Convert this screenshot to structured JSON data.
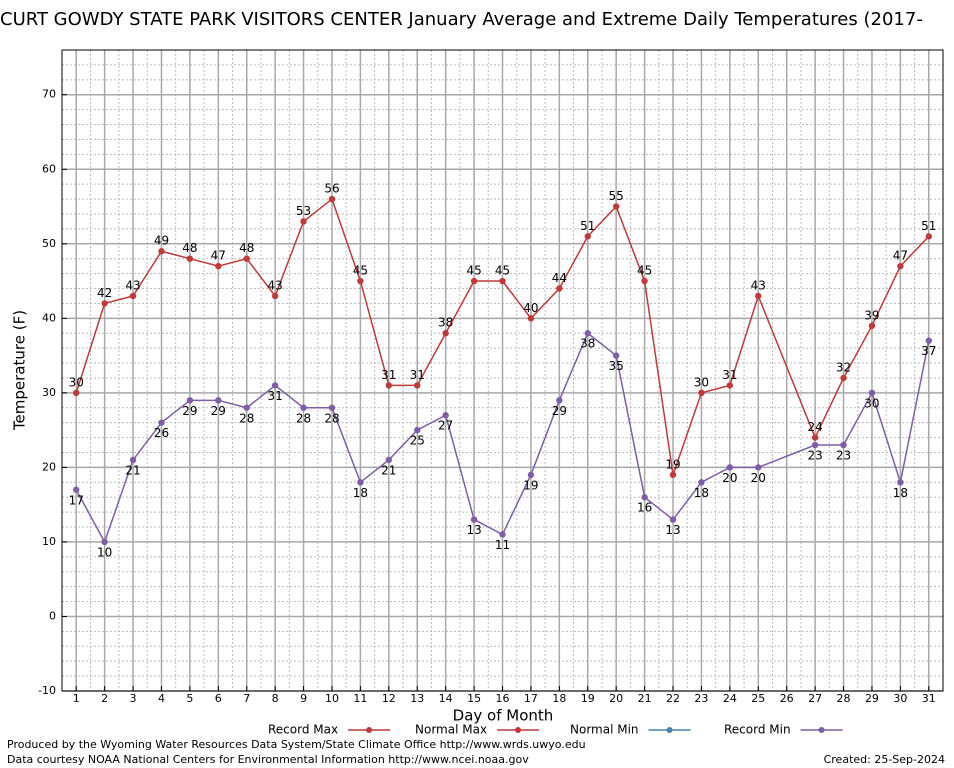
{
  "chart_data": {
    "type": "line",
    "title": "CURT GOWDY STATE PARK VISITORS CENTER January Average and Extreme Daily Temperatures (2017-",
    "xlabel": "Day of Month",
    "ylabel": "Temperature (F)",
    "xlim": [
      0.5,
      31.5
    ],
    "xticks": [
      1,
      2,
      3,
      4,
      5,
      6,
      7,
      8,
      9,
      10,
      11,
      12,
      13,
      14,
      15,
      16,
      17,
      18,
      19,
      20,
      21,
      22,
      23,
      24,
      25,
      26,
      27,
      28,
      29,
      30,
      31
    ],
    "ylim": [
      -10,
      76
    ],
    "yticks": [
      -10,
      0,
      10,
      20,
      30,
      40,
      50,
      60,
      70
    ],
    "grid": true,
    "series": [
      {
        "name": "Record Max",
        "color": "#c0393b",
        "label_position": "above",
        "x": [
          1,
          2,
          3,
          4,
          5,
          6,
          7,
          8,
          9,
          10,
          11,
          12,
          13,
          14,
          15,
          16,
          17,
          18,
          19,
          20,
          21,
          22,
          23,
          24,
          25,
          27,
          28,
          29,
          30,
          31
        ],
        "values": [
          30,
          42,
          43,
          49,
          48,
          47,
          48,
          43,
          53,
          56,
          45,
          31,
          31,
          38,
          45,
          45,
          40,
          44,
          51,
          55,
          45,
          19,
          30,
          31,
          43,
          24,
          32,
          39,
          47,
          51
        ]
      },
      {
        "name": "Normal Max",
        "color": "#c0393b",
        "x": [],
        "values": []
      },
      {
        "name": "Normal Min",
        "color": "#4682b4",
        "x": [],
        "values": []
      },
      {
        "name": "Record Min",
        "color": "#7e5ea6",
        "label_position": "below",
        "x": [
          1,
          2,
          3,
          4,
          5,
          6,
          7,
          8,
          9,
          10,
          11,
          12,
          13,
          14,
          15,
          16,
          17,
          18,
          19,
          20,
          21,
          22,
          23,
          24,
          25,
          27,
          28,
          29,
          30,
          31
        ],
        "values": [
          17,
          10,
          21,
          26,
          29,
          29,
          28,
          31,
          28,
          28,
          18,
          21,
          25,
          27,
          13,
          11,
          19,
          29,
          38,
          35,
          16,
          13,
          18,
          20,
          20,
          23,
          23,
          30,
          18,
          37
        ]
      }
    ],
    "footer_left": [
      "Produced by the Wyoming Water Resources Data System/State Climate Office http://www.wrds.uwyo.edu",
      "Data courtesy NOAA National Centers for Environmental Information http://www.ncei.noaa.gov"
    ],
    "footer_right": "Created:  25-Sep-2024"
  }
}
